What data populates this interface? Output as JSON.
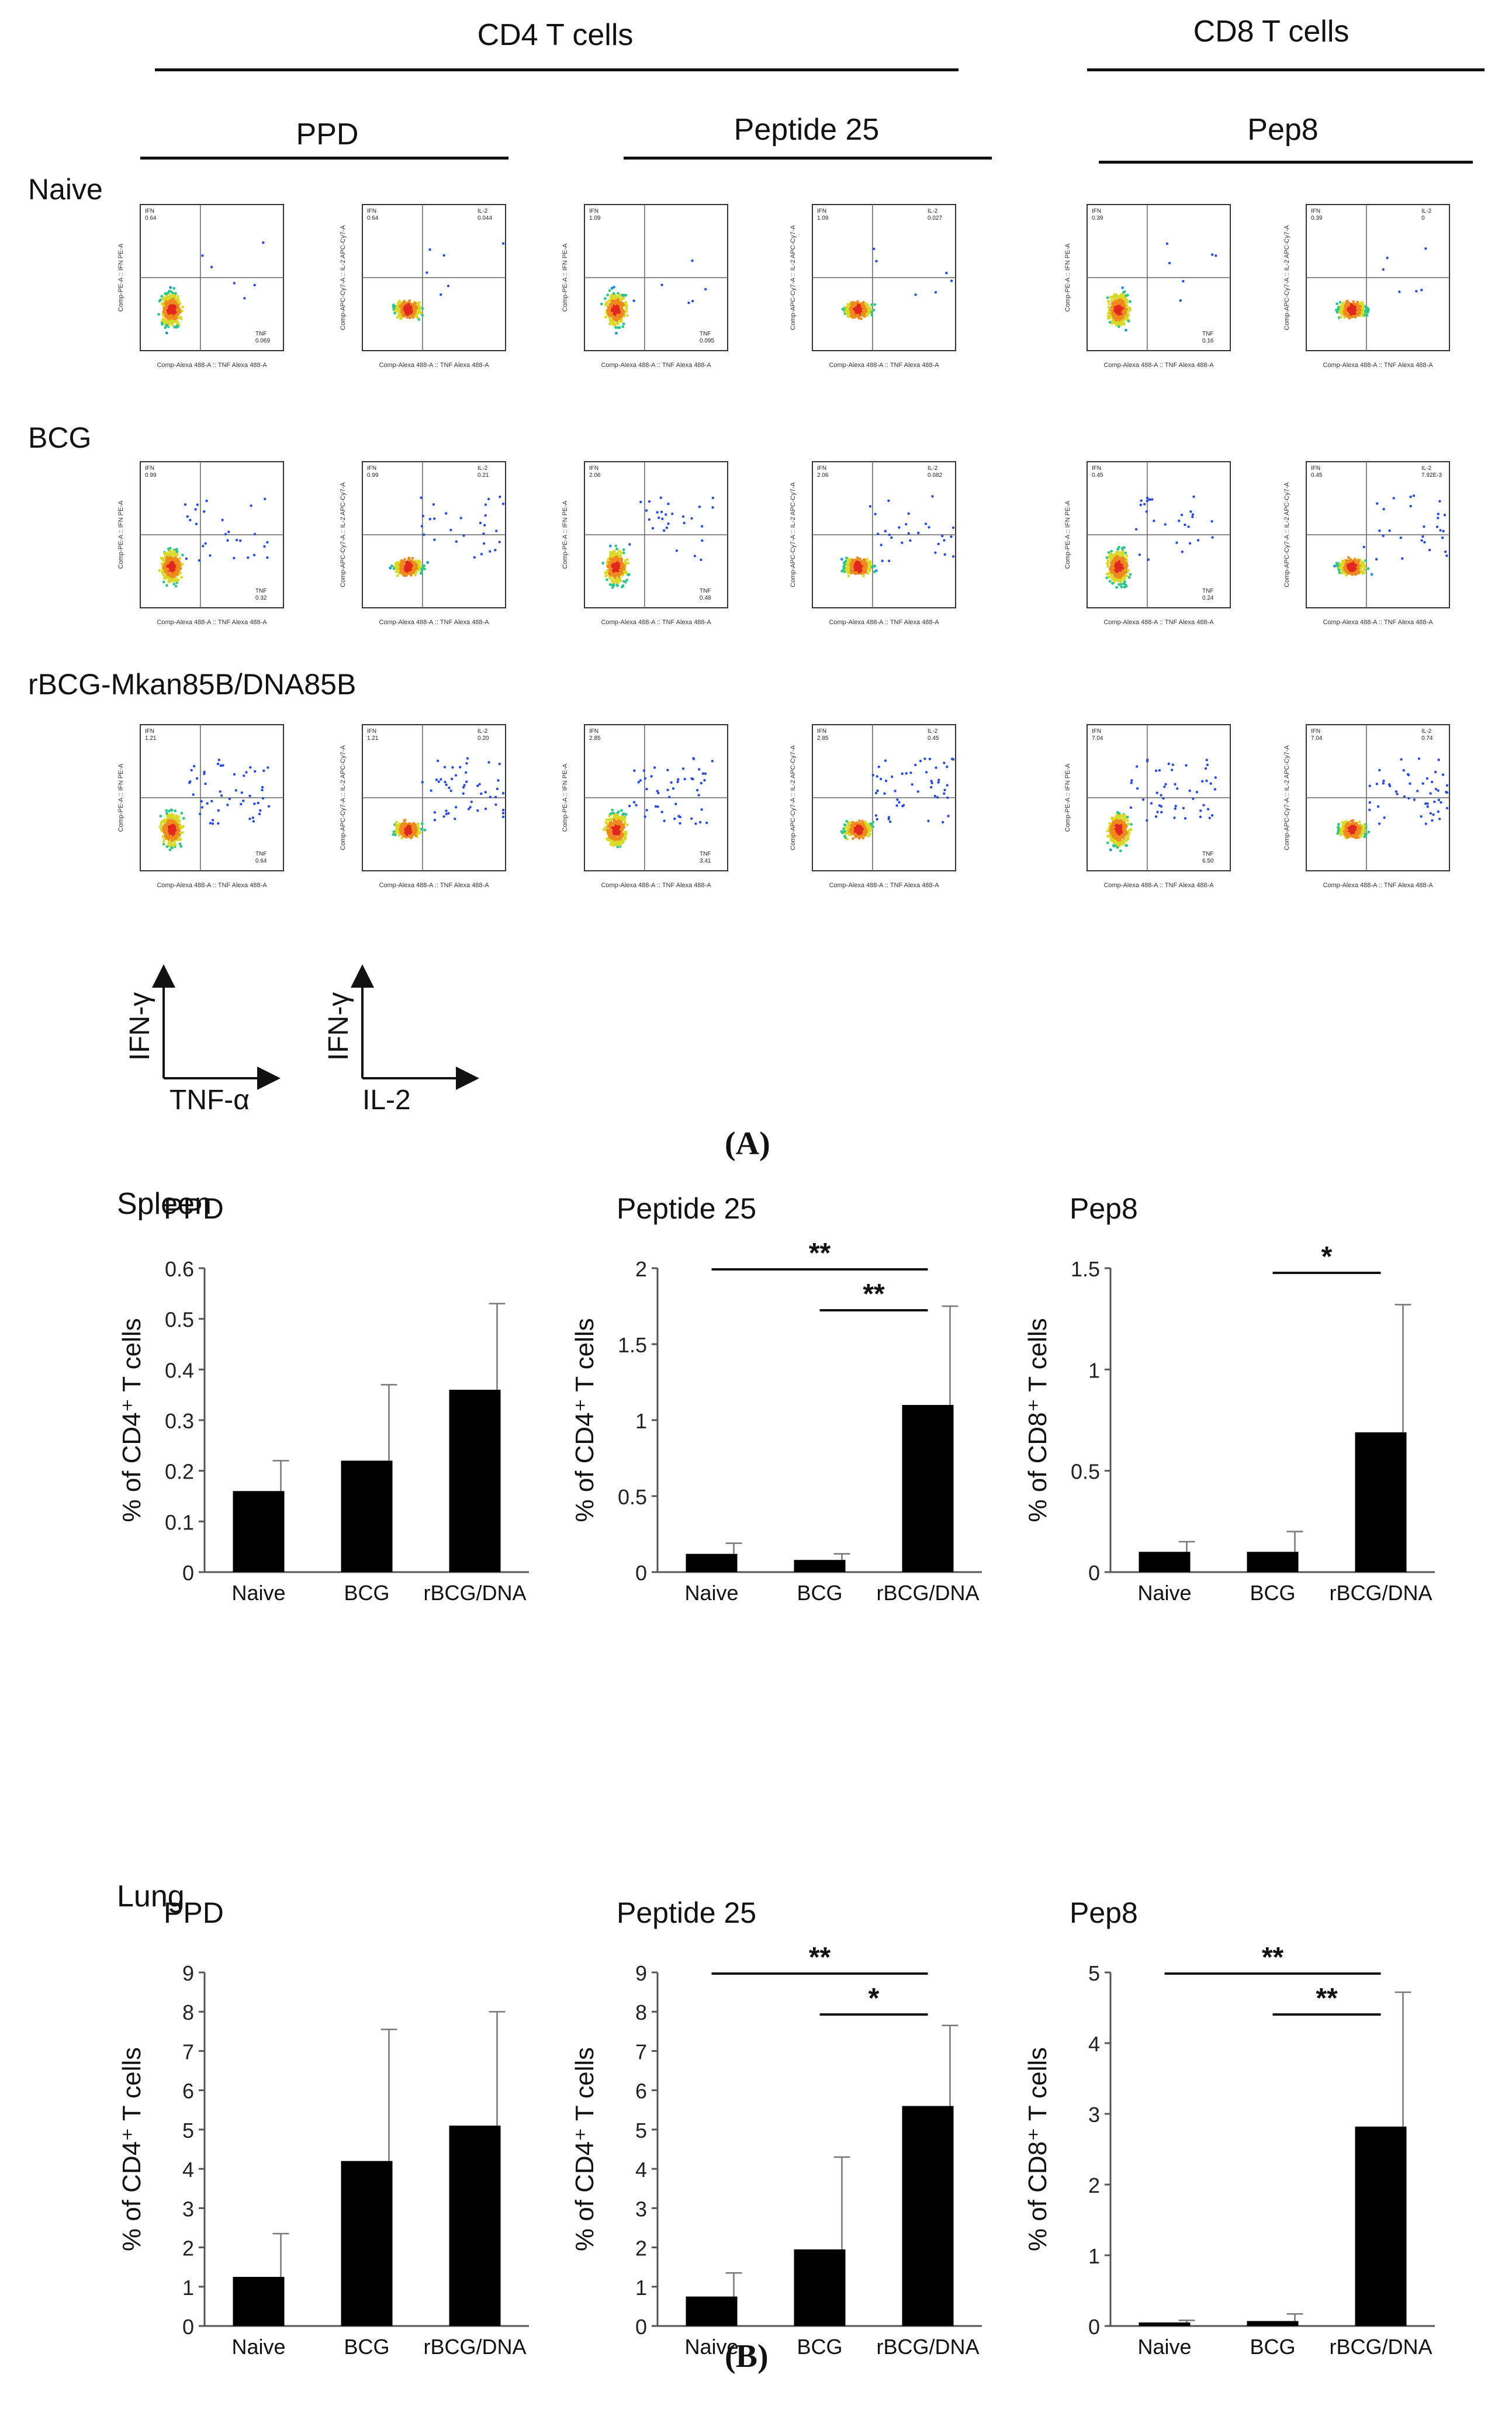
{
  "panel_a": {
    "label": "(A)",
    "group_headers": [
      "CD4 T cells",
      "CD8 T cells"
    ],
    "antigen_headers": [
      "PPD",
      "Peptide 25",
      "Pep8"
    ],
    "row_labels": [
      "Naive",
      "BCG",
      "rBCG-Mkan85B/DNA85B"
    ],
    "plot_text": {
      "ifn_gate": "IFN",
      "tnf_gate": "TNF",
      "il2_gate": "IL-2",
      "x_axis_label": "Comp-Alexa 488-A :: TNF Alexa 488-A",
      "y_axis_ifn": "Comp-PE-A :: IFN PE-A",
      "y_axis_il2": "Comp-APC-Cy7-A :: IL-2 APC-Cy7-A"
    },
    "flow_plots": [
      {
        "row": 0,
        "col": 0,
        "ifn": "0.64",
        "tnf": "0.069",
        "il2": "0.044"
      },
      {
        "row": 0,
        "col": 1,
        "ifn": "1.09",
        "tnf": "0.095",
        "il2": "0.027"
      },
      {
        "row": 0,
        "col": 2,
        "ifn": "0.39",
        "tnf": "0.16",
        "il2": "0"
      },
      {
        "row": 1,
        "col": 0,
        "ifn": "0.99",
        "tnf": "0.32",
        "il2": "0.21"
      },
      {
        "row": 1,
        "col": 1,
        "ifn": "2.06",
        "tnf": "0.48",
        "il2": "0.082"
      },
      {
        "row": 1,
        "col": 2,
        "ifn": "0.45",
        "tnf": "0.24",
        "il2": "7.92E-3"
      },
      {
        "row": 2,
        "col": 0,
        "ifn": "1.21",
        "tnf": "0.64",
        "il2": "0.20"
      },
      {
        "row": 2,
        "col": 1,
        "ifn": "2.85",
        "tnf": "3.41",
        "il2": "0.45"
      },
      {
        "row": 2,
        "col": 2,
        "ifn": "7.04",
        "tnf": "6.50",
        "il2": "0.74"
      }
    ],
    "legend": {
      "y1": "IFN-γ",
      "x1": "TNF-α",
      "y2": "IFN-γ",
      "x2": "IL-2"
    }
  },
  "panel_b": {
    "label": "(B)",
    "sections": [
      "Spleen",
      "Lung"
    ]
  },
  "chart_data": [
    {
      "type": "bar",
      "section": "Spleen",
      "title": "PPD",
      "ylabel": "% of CD4⁺ T cells",
      "categories": [
        "Naive",
        "BCG",
        "rBCG/DNA"
      ],
      "values": [
        0.16,
        0.22,
        0.36
      ],
      "errors": [
        0.06,
        0.15,
        0.17
      ],
      "ylim": [
        0,
        0.6
      ],
      "yticks": [
        "0",
        "0.1",
        "0.2",
        "0.3",
        "0.4",
        "0.5",
        "0.6"
      ],
      "significance": []
    },
    {
      "type": "bar",
      "section": "Spleen",
      "title": "Peptide 25",
      "ylabel": "% of CD4⁺ T cells",
      "categories": [
        "Naive",
        "BCG",
        "rBCG/DNA"
      ],
      "values": [
        0.12,
        0.08,
        1.1
      ],
      "errors": [
        0.07,
        0.04,
        0.65
      ],
      "ylim": [
        0,
        2
      ],
      "yticks": [
        "0",
        "0.5",
        "1",
        "1.5",
        "2"
      ],
      "significance": [
        {
          "from": "Naive",
          "to": "rBCG/DNA",
          "label": "**"
        },
        {
          "from": "BCG",
          "to": "rBCG/DNA",
          "label": "**"
        }
      ]
    },
    {
      "type": "bar",
      "section": "Spleen",
      "title": "Pep8",
      "ylabel": "% of CD8⁺ T cells",
      "categories": [
        "Naive",
        "BCG",
        "rBCG/DNA"
      ],
      "values": [
        0.1,
        0.1,
        0.69
      ],
      "errors": [
        0.05,
        0.1,
        0.63
      ],
      "ylim": [
        0,
        1.5
      ],
      "yticks": [
        "0",
        "0.5",
        "1",
        "1.5"
      ],
      "significance": [
        {
          "from": "BCG",
          "to": "rBCG/DNA",
          "label": "*"
        }
      ]
    },
    {
      "type": "bar",
      "section": "Lung",
      "title": "PPD",
      "ylabel": "% of CD4⁺ T cells",
      "categories": [
        "Naive",
        "BCG",
        "rBCG/DNA"
      ],
      "values": [
        1.25,
        4.2,
        5.1
      ],
      "errors": [
        1.1,
        3.35,
        2.9
      ],
      "ylim": [
        0,
        9
      ],
      "yticks": [
        "0",
        "1",
        "2",
        "3",
        "4",
        "5",
        "6",
        "7",
        "8",
        "9"
      ],
      "significance": []
    },
    {
      "type": "bar",
      "section": "Lung",
      "title": "Peptide 25",
      "ylabel": "% of CD4⁺ T cells",
      "categories": [
        "Naive",
        "BCG",
        "rBCG/DNA"
      ],
      "values": [
        0.75,
        1.95,
        5.6
      ],
      "errors": [
        0.6,
        2.35,
        2.05
      ],
      "ylim": [
        0,
        9
      ],
      "yticks": [
        "0",
        "1",
        "2",
        "3",
        "4",
        "5",
        "6",
        "7",
        "8",
        "9"
      ],
      "significance": [
        {
          "from": "Naive",
          "to": "rBCG/DNA",
          "label": "**"
        },
        {
          "from": "BCG",
          "to": "rBCG/DNA",
          "label": "*"
        }
      ]
    },
    {
      "type": "bar",
      "section": "Lung",
      "title": "Pep8",
      "ylabel": "% of CD8⁺ T cells",
      "categories": [
        "Naive",
        "BCG",
        "rBCG/DNA"
      ],
      "values": [
        0.05,
        0.07,
        2.82
      ],
      "errors": [
        0.03,
        0.1,
        1.9
      ],
      "ylim": [
        0,
        5
      ],
      "yticks": [
        "0",
        "1",
        "2",
        "3",
        "4",
        "5"
      ],
      "significance": [
        {
          "from": "Naive",
          "to": "rBCG/DNA",
          "label": "**"
        },
        {
          "from": "BCG",
          "to": "rBCG/DNA",
          "label": "**"
        }
      ]
    }
  ]
}
